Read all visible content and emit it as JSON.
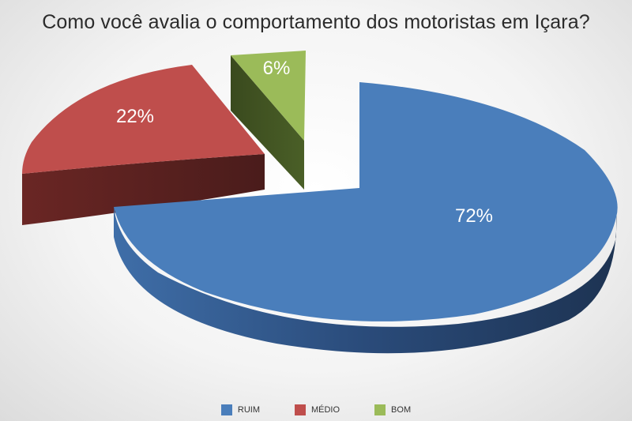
{
  "chart_data": {
    "type": "pie",
    "title": "Como você avalia o comportamento dos motoristas em Içara?",
    "slices": [
      {
        "label": "RUIM",
        "value": 72,
        "display": "72%",
        "color": "#4a7ebb",
        "side_color": "#24406a"
      },
      {
        "label": "MÉDIO",
        "value": 22,
        "display": "22%",
        "color": "#bf4e4c",
        "side_color": "#56201f"
      },
      {
        "label": "BOM",
        "value": 6,
        "display": "6%",
        "color": "#9bbb59",
        "side_color": "#3e5020"
      }
    ],
    "legend_position": "bottom",
    "three_d": true,
    "exploded": true
  }
}
